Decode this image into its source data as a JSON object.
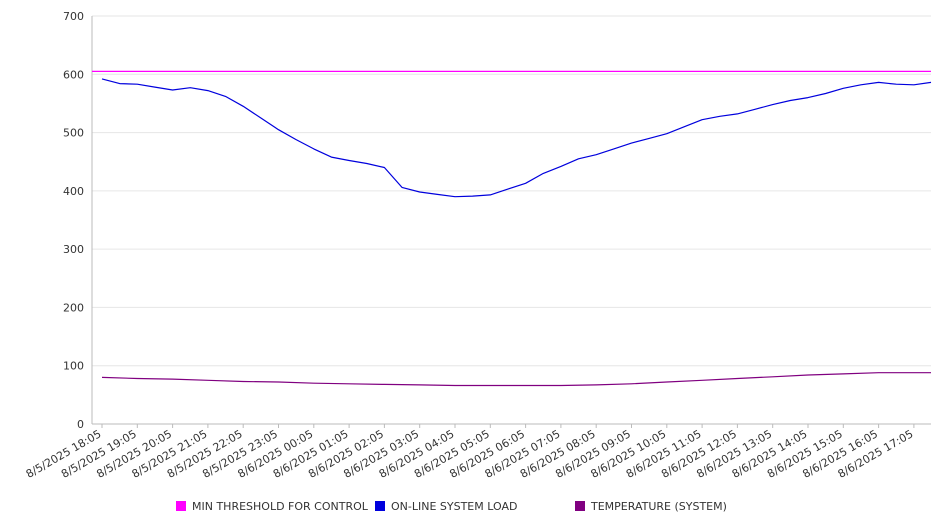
{
  "chart_data": {
    "type": "line",
    "title": "",
    "xlabel": "",
    "ylabel": "",
    "ylim": [
      0,
      700
    ],
    "yticks": [
      0,
      100,
      200,
      300,
      400,
      500,
      600,
      700
    ],
    "grid": true,
    "legend_position": "bottom",
    "x_tick_labels": [
      "8/5/2025 18:05",
      "8/5/2025 19:05",
      "8/5/2025 20:05",
      "8/5/2025 21:05",
      "8/5/2025 22:05",
      "8/5/2025 23:05",
      "8/6/2025 00:05",
      "8/6/2025 01:05",
      "8/6/2025 02:05",
      "8/6/2025 03:05",
      "8/6/2025 04:05",
      "8/6/2025 05:05",
      "8/6/2025 06:05",
      "8/6/2025 07:05",
      "8/6/2025 08:05",
      "8/6/2025 09:05",
      "8/6/2025 10:05",
      "8/6/2025 11:05",
      "8/6/2025 12:05",
      "8/6/2025 13:05",
      "8/6/2025 14:05",
      "8/6/2025 15:05",
      "8/6/2025 16:05",
      "8/6/2025 17:05"
    ],
    "series": [
      {
        "name": "MIN THRESHOLD FOR CONTROL",
        "color": "#ff00ff",
        "x": [
          "8/5/2025 18:05",
          "8/6/2025 17:05"
        ],
        "values": [
          605,
          605
        ]
      },
      {
        "name": "ON-LINE SYSTEM LOAD",
        "color": "#0000dd",
        "x": [
          "8/5/2025 18:05",
          "8/5/2025 18:35",
          "8/5/2025 19:05",
          "8/5/2025 19:35",
          "8/5/2025 20:05",
          "8/5/2025 20:35",
          "8/5/2025 21:05",
          "8/5/2025 21:35",
          "8/5/2025 22:05",
          "8/5/2025 22:35",
          "8/5/2025 23:05",
          "8/5/2025 23:35",
          "8/6/2025 00:05",
          "8/6/2025 00:35",
          "8/6/2025 01:05",
          "8/6/2025 01:35",
          "8/6/2025 02:05",
          "8/6/2025 02:35",
          "8/6/2025 03:05",
          "8/6/2025 03:35",
          "8/6/2025 04:05",
          "8/6/2025 04:35",
          "8/6/2025 05:05",
          "8/6/2025 05:35",
          "8/6/2025 06:05",
          "8/6/2025 06:35",
          "8/6/2025 07:05",
          "8/6/2025 07:35",
          "8/6/2025 08:05",
          "8/6/2025 08:35",
          "8/6/2025 09:05",
          "8/6/2025 09:35",
          "8/6/2025 10:05",
          "8/6/2025 10:35",
          "8/6/2025 11:05",
          "8/6/2025 11:35",
          "8/6/2025 12:05",
          "8/6/2025 12:35",
          "8/6/2025 13:05",
          "8/6/2025 13:35",
          "8/6/2025 14:05",
          "8/6/2025 14:35",
          "8/6/2025 15:05",
          "8/6/2025 15:35",
          "8/6/2025 16:05",
          "8/6/2025 16:35",
          "8/6/2025 17:05",
          "8/6/2025 17:35"
        ],
        "values": [
          592,
          584,
          583,
          578,
          573,
          577,
          572,
          562,
          545,
          525,
          505,
          488,
          472,
          458,
          452,
          447,
          440,
          406,
          398,
          394,
          390,
          391,
          393,
          403,
          413,
          430,
          442,
          455,
          462,
          472,
          482,
          490,
          498,
          510,
          522,
          528,
          532,
          540,
          548,
          555,
          560,
          567,
          576,
          582,
          586,
          583,
          582,
          586
        ]
      },
      {
        "name": "TEMPERATURE (SYSTEM)",
        "color": "#800080",
        "x": [
          "8/5/2025 18:05",
          "8/5/2025 19:05",
          "8/5/2025 20:05",
          "8/5/2025 21:05",
          "8/5/2025 22:05",
          "8/5/2025 23:05",
          "8/6/2025 00:05",
          "8/6/2025 01:05",
          "8/6/2025 02:05",
          "8/6/2025 03:05",
          "8/6/2025 04:05",
          "8/6/2025 05:05",
          "8/6/2025 06:05",
          "8/6/2025 07:05",
          "8/6/2025 08:05",
          "8/6/2025 09:05",
          "8/6/2025 10:05",
          "8/6/2025 11:05",
          "8/6/2025 12:05",
          "8/6/2025 13:05",
          "8/6/2025 14:05",
          "8/6/2025 15:05",
          "8/6/2025 16:05",
          "8/6/2025 17:05",
          "8/6/2025 17:35"
        ],
        "values": [
          80,
          78,
          77,
          75,
          73,
          72,
          70,
          69,
          68,
          67,
          66,
          66,
          66,
          66,
          67,
          69,
          72,
          75,
          78,
          81,
          84,
          86,
          88,
          88,
          88
        ]
      }
    ]
  }
}
